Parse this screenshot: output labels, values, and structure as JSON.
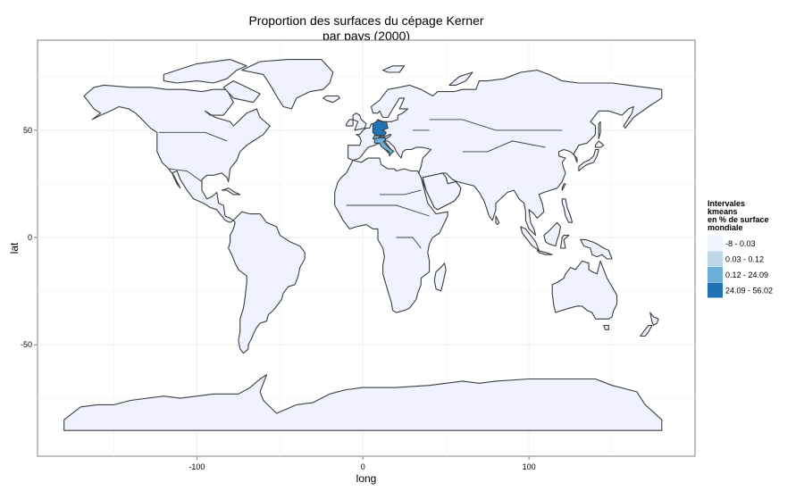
{
  "chart_data": {
    "type": "choropleth-map",
    "title_line1": "Proportion des surfaces du cépage Kerner",
    "title_line2": "par pays (2000)",
    "xlabel": "long",
    "ylabel": "lat",
    "xlim": [
      -196,
      200
    ],
    "ylim": [
      -102,
      92
    ],
    "x_ticks": [
      {
        "value": -100,
        "label": "-100"
      },
      {
        "value": 0,
        "label": "0"
      },
      {
        "value": 100,
        "label": "100"
      }
    ],
    "y_ticks": [
      {
        "value": 50,
        "label": "50"
      },
      {
        "value": 0,
        "label": "0"
      },
      {
        "value": -50,
        "label": "-50"
      }
    ],
    "grid": true,
    "legend": {
      "title_lines": [
        "Intervales",
        " kmeans",
        " en % de surface",
        " mondiale"
      ],
      "placement": "right",
      "classes": [
        {
          "label": "-8 - 0.03",
          "color": "#eff3ff"
        },
        {
          "label": "0.03 - 0.12",
          "color": "#bdd7e7"
        },
        {
          "label": "0.12 - 24.09",
          "color": "#6baed6"
        },
        {
          "label": "24.09 - 56.02",
          "color": "#2171b5"
        }
      ]
    },
    "highlighted_countries": [
      {
        "name": "Germany",
        "class": 3
      },
      {
        "name": "Switzerland",
        "class": 2
      },
      {
        "name": "Italy",
        "class": 2
      },
      {
        "name": "Austria",
        "class": 1
      }
    ]
  }
}
